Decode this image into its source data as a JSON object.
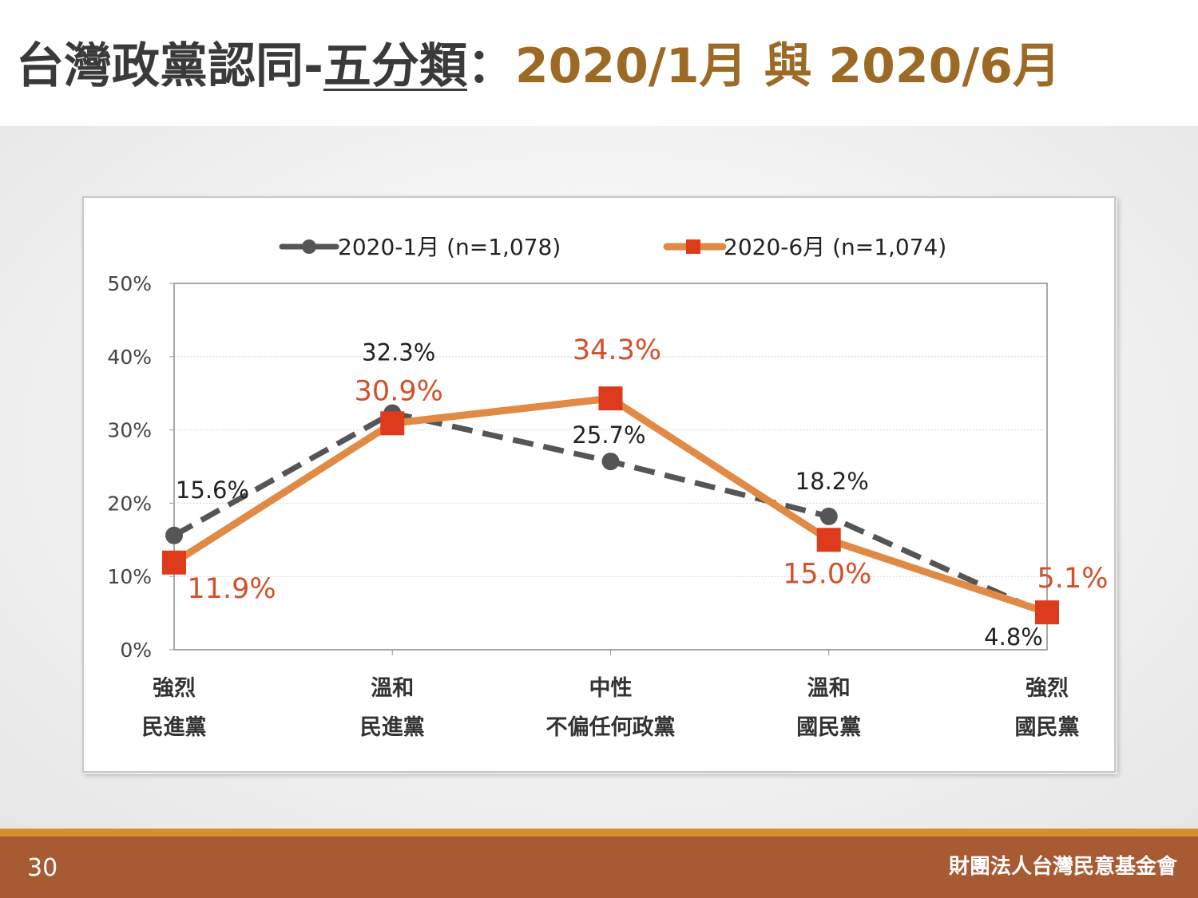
{
  "title": {
    "part1": "台灣政黨認同-",
    "part2": "五分類",
    "part3": "：",
    "part4": "2020/1月 與 2020/6月"
  },
  "footer": {
    "page_number": "30",
    "organization": "財團法人台灣民意基金會"
  },
  "colors": {
    "series1": "#555555",
    "series2": "#e08a45",
    "marker2": "#dd3b1c",
    "label2": "#d2502a",
    "title_accent": "#9c6a24",
    "footer": "#a85a33"
  },
  "chart_data": {
    "type": "line",
    "ylim": [
      0,
      50
    ],
    "y_ticks": [
      "0%",
      "10%",
      "20%",
      "30%",
      "40%",
      "50%"
    ],
    "grid": true,
    "legend_position": "top",
    "categories": [
      [
        "強烈",
        "民進黨"
      ],
      [
        "溫和",
        "民進黨"
      ],
      [
        "中性",
        "不偏任何政黨"
      ],
      [
        "溫和",
        "國民黨"
      ],
      [
        "強烈",
        "國民黨"
      ]
    ],
    "series": [
      {
        "name": "2020-1月 (n=1,078)",
        "values": [
          15.6,
          32.3,
          25.7,
          18.2,
          4.8
        ],
        "labels": [
          "15.6%",
          "32.3%",
          "25.7%",
          "18.2%",
          "4.8%"
        ],
        "style": "dashed",
        "marker": "circle"
      },
      {
        "name": "2020-6月 (n=1,074)",
        "values": [
          11.9,
          30.9,
          34.3,
          15.0,
          5.1
        ],
        "labels": [
          "11.9%",
          "30.9%",
          "34.3%",
          "15.0%",
          "5.1%"
        ],
        "style": "solid",
        "marker": "square"
      }
    ]
  }
}
